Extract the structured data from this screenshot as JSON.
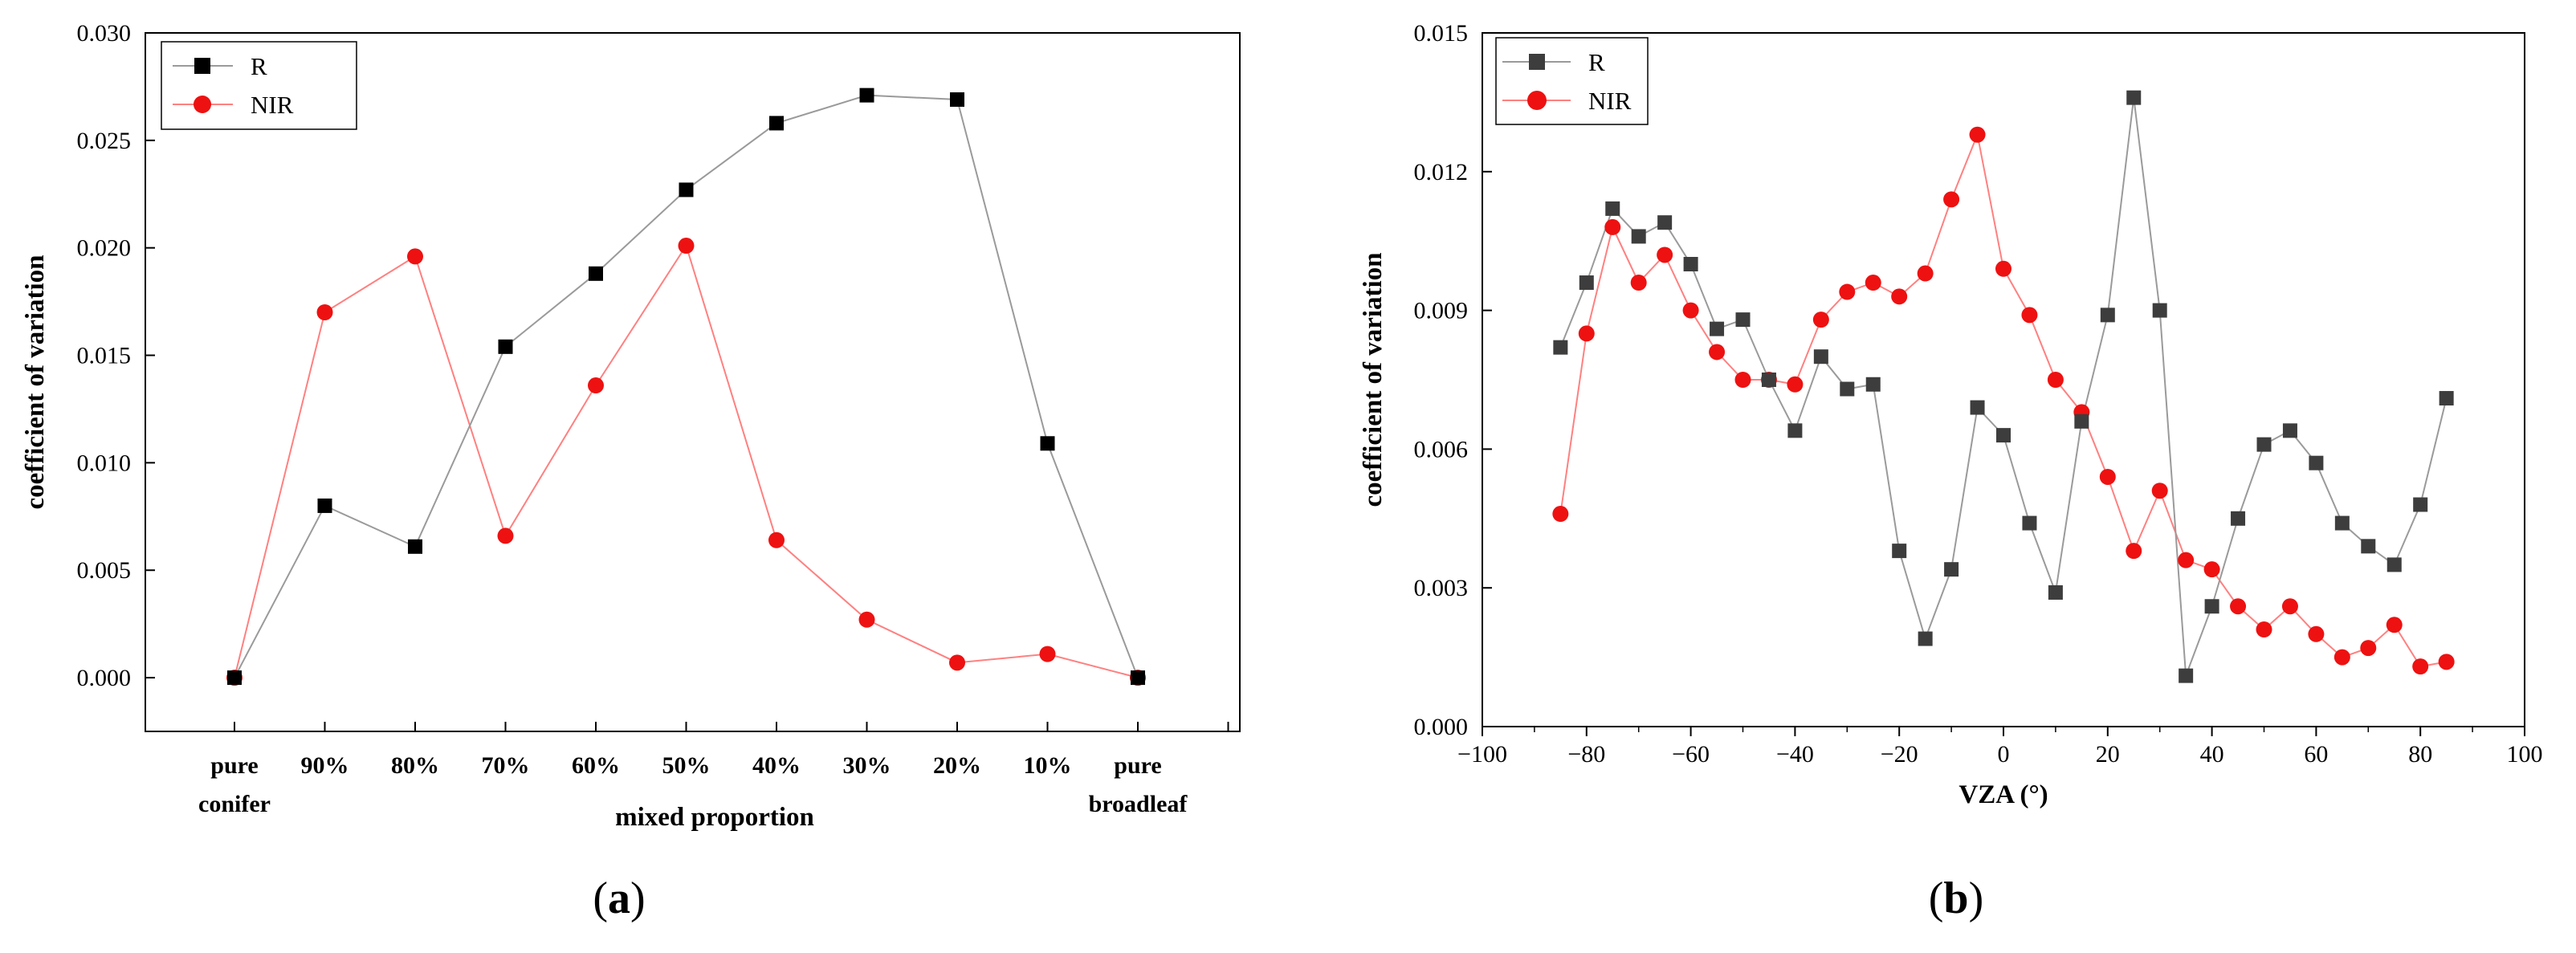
{
  "colors": {
    "R": "#000000",
    "R_b": "#3d3d3d",
    "NIR": "#ee1111",
    "line_R": "#9a9a9a",
    "line_NIR": "#ff8080"
  },
  "chart_data": [
    {
      "panel": "a",
      "type": "line",
      "panel_label": {
        "open": "(",
        "letter": "a",
        "close": ")"
      },
      "xlabel": "mixed proportion",
      "ylabel": "coefficient of variation",
      "categories": [
        {
          "top": "pure",
          "bottom": "conifer"
        },
        {
          "top": "90%",
          "bottom": ""
        },
        {
          "top": "80%",
          "bottom": ""
        },
        {
          "top": "70%",
          "bottom": ""
        },
        {
          "top": "60%",
          "bottom": ""
        },
        {
          "top": "50%",
          "bottom": ""
        },
        {
          "top": "40%",
          "bottom": ""
        },
        {
          "top": "30%",
          "bottom": ""
        },
        {
          "top": "20%",
          "bottom": ""
        },
        {
          "top": "10%",
          "bottom": ""
        },
        {
          "top": "pure",
          "bottom": "broadleaf"
        }
      ],
      "ylim": [
        -0.0025,
        0.03
      ],
      "yticks": [
        "0.000",
        "0.005",
        "0.010",
        "0.015",
        "0.020",
        "0.025",
        "0.030"
      ],
      "legend_position": "top-left",
      "series": [
        {
          "name": "R",
          "marker": "square",
          "values": [
            0.0,
            0.008,
            0.0061,
            0.0154,
            0.0188,
            0.0227,
            0.0258,
            0.0271,
            0.0269,
            0.0109,
            0.0
          ]
        },
        {
          "name": "NIR",
          "marker": "circle",
          "values": [
            0.0,
            0.017,
            0.0196,
            0.0066,
            0.0136,
            0.0201,
            0.0064,
            0.0027,
            0.0007,
            0.0011,
            0.0
          ]
        }
      ]
    },
    {
      "panel": "b",
      "type": "line",
      "panel_label": {
        "open": "(",
        "letter": "b",
        "close": ")"
      },
      "xlabel": "VZA (°)",
      "ylabel": "coefficient of variation",
      "xlim": [
        -100,
        100
      ],
      "xticks": [
        "−100",
        "−80",
        "−60",
        "−40",
        "−20",
        "0",
        "20",
        "40",
        "60",
        "80",
        "100"
      ],
      "ylim": [
        0.0,
        0.015
      ],
      "yticks": [
        "0.000",
        "0.003",
        "0.006",
        "0.009",
        "0.012",
        "0.015"
      ],
      "legend_position": "top-left",
      "x": [
        -85,
        -80,
        -75,
        -70,
        -65,
        -60,
        -55,
        -50,
        -45,
        -40,
        -35,
        -30,
        -25,
        -20,
        -15,
        -10,
        -5,
        0,
        5,
        10,
        15,
        20,
        25,
        30,
        35,
        40,
        45,
        50,
        55,
        60,
        65,
        70,
        75,
        80,
        85
      ],
      "series": [
        {
          "name": "R",
          "marker": "square",
          "values": [
            0.0082,
            0.0096,
            0.0112,
            0.0106,
            0.0109,
            0.01,
            0.0086,
            0.0088,
            0.0075,
            0.0064,
            0.008,
            0.0073,
            0.0074,
            0.0038,
            0.0019,
            0.0034,
            0.0069,
            0.0063,
            0.0044,
            0.0029,
            0.0066,
            0.0089,
            0.0136,
            0.009,
            0.0011,
            0.0026,
            0.0045,
            0.0061,
            0.0064,
            0.0057,
            0.0044,
            0.0039,
            0.0035,
            0.0048,
            0.0071
          ]
        },
        {
          "name": "NIR",
          "marker": "circle",
          "values": [
            0.0046,
            0.0085,
            0.0108,
            0.0096,
            0.0102,
            0.009,
            0.0081,
            0.0075,
            0.0075,
            0.0074,
            0.0088,
            0.0094,
            0.0096,
            0.0093,
            0.0098,
            0.0114,
            0.0128,
            0.0099,
            0.0089,
            0.0075,
            0.0068,
            0.0054,
            0.0038,
            0.0051,
            0.0036,
            0.0034,
            0.0026,
            0.0021,
            0.0026,
            0.002,
            0.0015,
            0.0017,
            0.0022,
            0.0013,
            0.0014
          ]
        }
      ]
    }
  ]
}
